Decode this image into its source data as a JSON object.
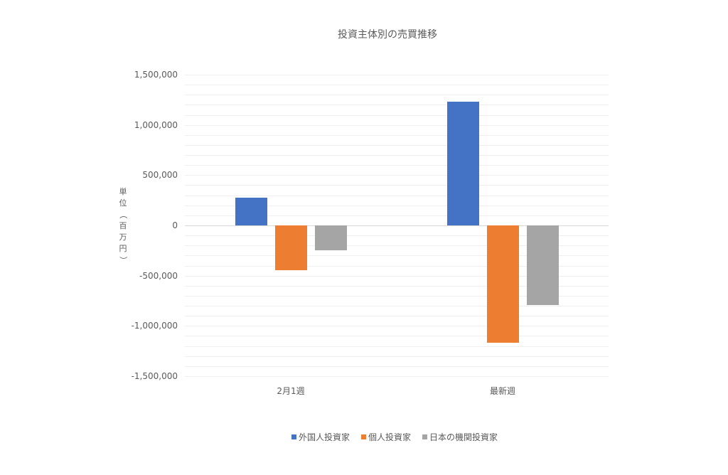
{
  "chart_data": {
    "type": "bar",
    "title": "投資主体別の売買推移",
    "xlabel": "",
    "ylabel": "単位（百万円）",
    "categories": [
      "2月1週",
      "最新週"
    ],
    "series": [
      {
        "name": "外国人投資家",
        "color": "#4472C4",
        "values": [
          275000,
          1230000
        ]
      },
      {
        "name": "個人投資家",
        "color": "#ED7D31",
        "values": [
          -445000,
          -1165000
        ]
      },
      {
        "name": "日本の機関投資家",
        "color": "#A5A5A5",
        "values": [
          -248000,
          -792000
        ]
      }
    ],
    "ylim": [
      -1500000,
      1500000
    ],
    "yticks": [
      1500000,
      1000000,
      500000,
      0,
      -500000,
      -1000000,
      -1500000
    ],
    "ytick_labels": [
      "1,500,000",
      "1,000,000",
      "500,000",
      "0",
      "-500,000",
      "-1,000,000",
      "-1,500,000"
    ],
    "minor_grid_step": 100000,
    "grid": true,
    "legend_position": "bottom"
  },
  "ylabel_chars": [
    "単",
    "位",
    "（",
    "百",
    "万",
    "円",
    "）"
  ]
}
